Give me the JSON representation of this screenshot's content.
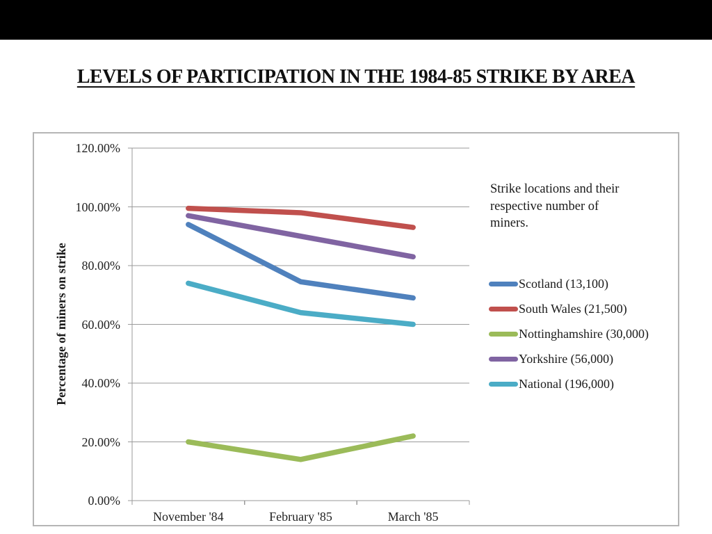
{
  "title": "LEVELS OF PARTICIPATION IN THE 1984-85 STRIKE BY AREA",
  "legend_note": "Strike locations and their respective number of miners.",
  "chart_data": {
    "type": "line",
    "title": "LEVELS OF PARTICIPATION IN THE 1984-85 STRIKE BY AREA",
    "xlabel": "",
    "ylabel": "Percentage of miners on strike",
    "categories": [
      "November '84",
      "February '85",
      "March '85"
    ],
    "y_ticks": [
      "120.00%",
      "100.00%",
      "80.00%",
      "60.00%",
      "40.00%",
      "20.00%",
      "0.00%"
    ],
    "ylim": [
      0,
      120
    ],
    "grid": "horizontal",
    "legend_position": "right",
    "series": [
      {
        "name": "Scotland (13,100)",
        "color": "#4F81BD",
        "values": [
          94,
          74.5,
          69
        ]
      },
      {
        "name": "South Wales (21,500)",
        "color": "#C0504D",
        "values": [
          99.5,
          98,
          93
        ]
      },
      {
        "name": "Nottinghamshire (30,000)",
        "color": "#9BBB59",
        "values": [
          20,
          14,
          22
        ]
      },
      {
        "name": "Yorkshire (56,000)",
        "color": "#8064A2",
        "values": [
          97,
          90,
          83
        ]
      },
      {
        "name": "National (196,000)",
        "color": "#4BACC6",
        "values": [
          74,
          64,
          60
        ]
      }
    ]
  },
  "colors": {
    "grid": "#9a9a9a",
    "axis": "#9a9a9a",
    "frame_border": "#b5b5b5",
    "letterbox": "#000000",
    "background": "#ffffff"
  }
}
